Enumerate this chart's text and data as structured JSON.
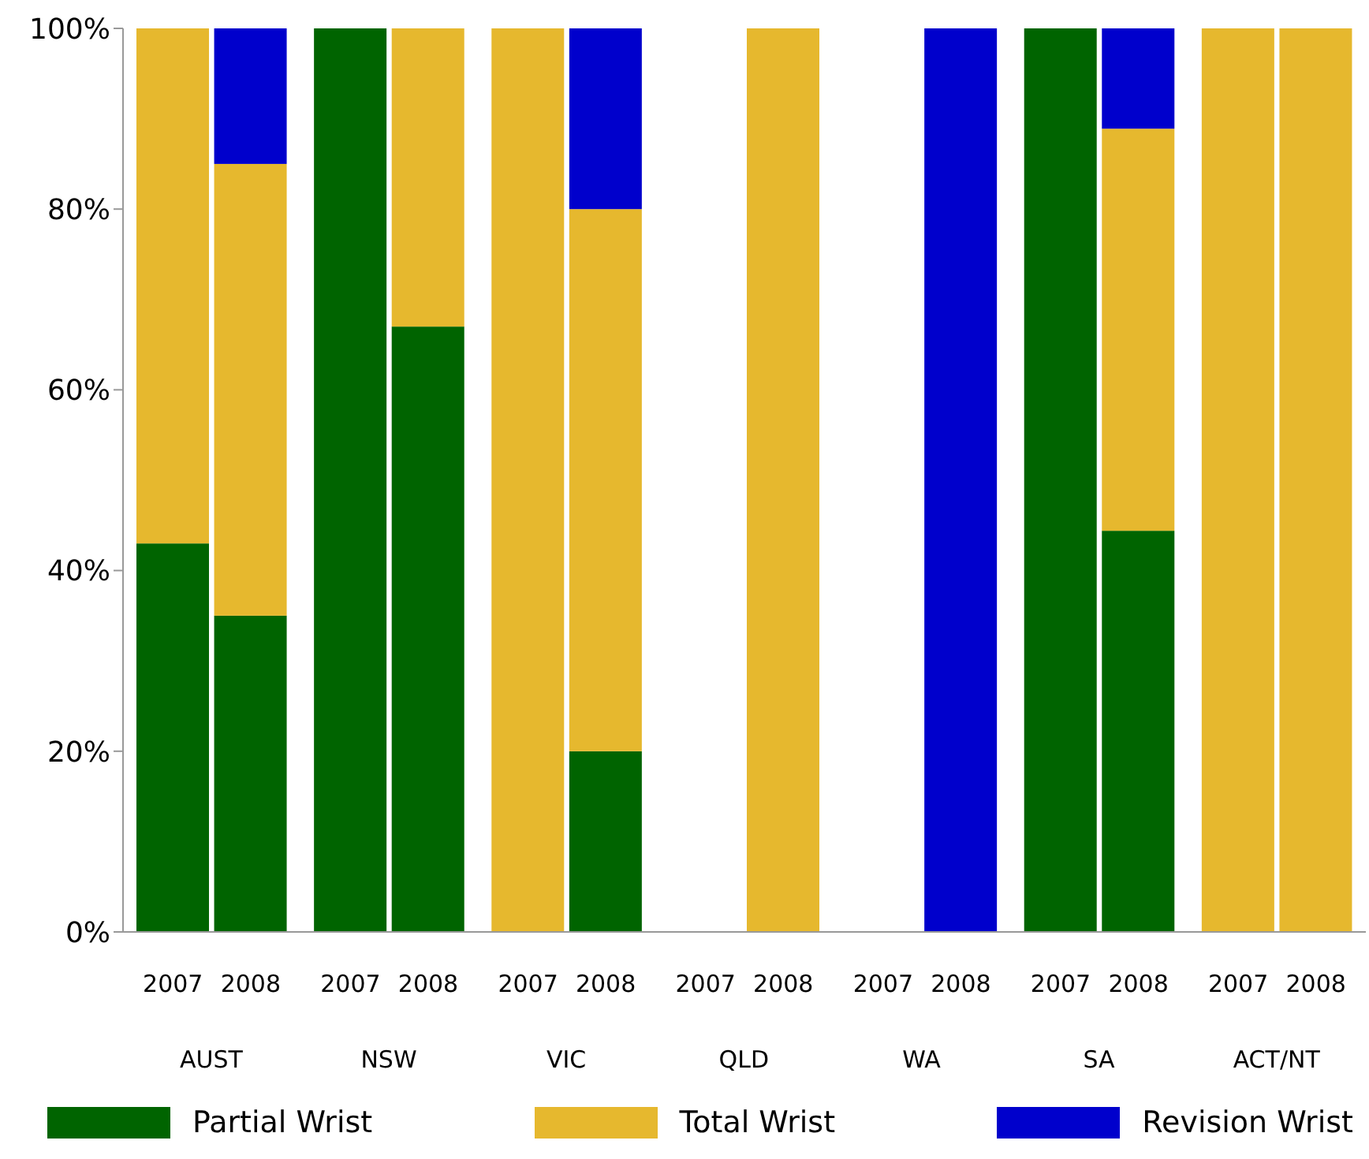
{
  "chart_data": {
    "type": "bar",
    "stacked": true,
    "categories": [
      "2007",
      "2008",
      "2007",
      "2008",
      "2007",
      "2008",
      "2007",
      "2008",
      "2007",
      "2008",
      "2007",
      "2008",
      "2007",
      "2008"
    ],
    "annotations": [
      "AUST",
      "NSW",
      "VIC",
      "QLD",
      "WA",
      "SA",
      "ACT/NT"
    ],
    "series": [
      {
        "name": "Partial Wrist",
        "color": "#006400",
        "values": [
          43,
          35,
          100,
          67,
          0,
          20,
          0,
          0,
          0,
          0,
          100,
          44.4,
          0,
          0
        ]
      },
      {
        "name": "Total Wrist",
        "color": "#e6b82e",
        "values": [
          57,
          50,
          0,
          33,
          100,
          60,
          0,
          100,
          0,
          0,
          0,
          44.5,
          100,
          100
        ]
      },
      {
        "name": "Revision Wrist",
        "color": "#0000cc",
        "values": [
          0,
          15,
          0,
          0,
          0,
          20,
          0,
          0,
          0,
          100,
          0,
          11.1,
          0,
          0
        ]
      }
    ],
    "ylim": [
      0,
      100
    ],
    "yticks": [
      {
        "value": 0,
        "label": "0%"
      },
      {
        "value": 20,
        "label": "20%"
      },
      {
        "value": 40,
        "label": "40%"
      },
      {
        "value": 60,
        "label": "60%"
      },
      {
        "value": 80,
        "label": "80%"
      },
      {
        "value": 100,
        "label": "100%"
      }
    ],
    "grid": false,
    "legend": "bottom"
  }
}
